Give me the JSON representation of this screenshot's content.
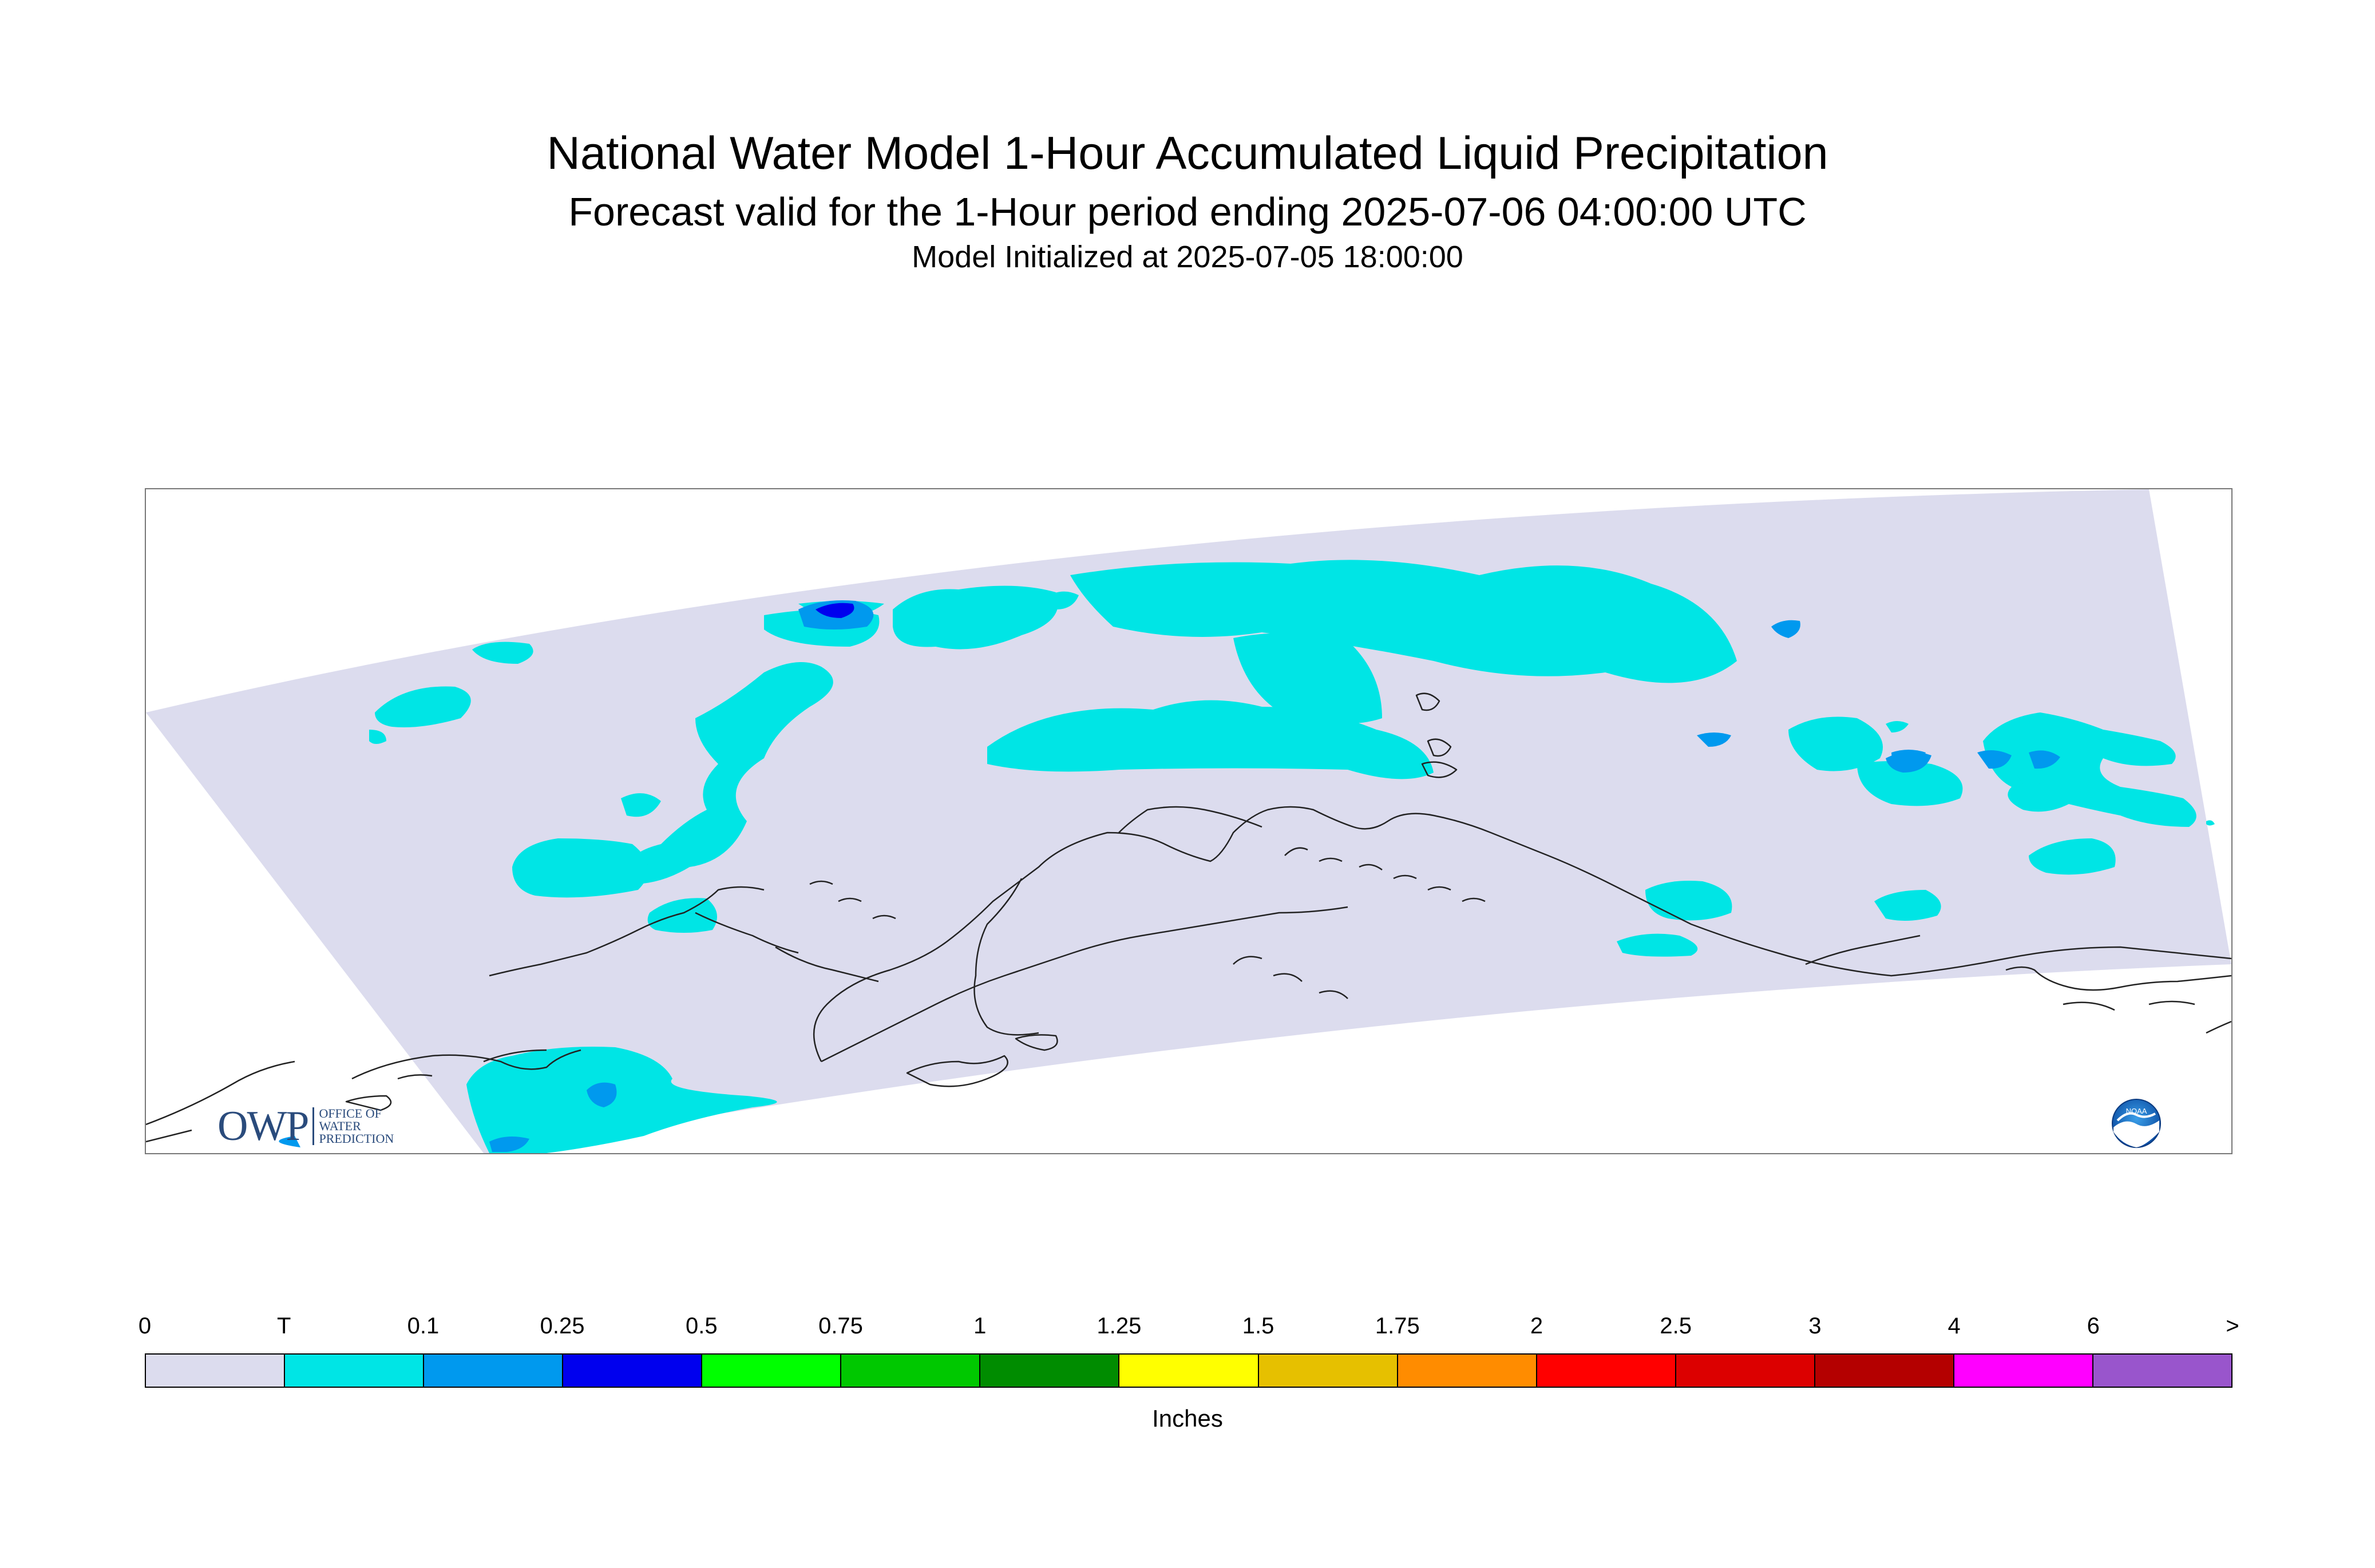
{
  "title": {
    "line1": "National Water Model 1-Hour Accumulated Liquid Precipitation",
    "line2": "Forecast valid for the 1-Hour period ending 2025-07-06 04:00:00 UTC",
    "line3": "Model Initialized at 2025-07-05 18:00:00"
  },
  "map": {
    "domain_color": "#dcdcee",
    "coastline_color": "#222222"
  },
  "owp_logo": {
    "mark": "OWP",
    "line1": "OFFICE OF",
    "line2": "WATER",
    "line3": "PREDICTION"
  },
  "noaa_logo": {
    "text": "NOAA",
    "icon": "noaa-emblem"
  },
  "legend": {
    "units": "Inches",
    "ticks": [
      "0",
      "T",
      "0.1",
      "0.25",
      "0.5",
      "0.75",
      "1",
      "1.25",
      "1.5",
      "1.75",
      "2",
      "2.5",
      "3",
      "4",
      "6",
      ">"
    ],
    "colors": [
      "#dcdcee",
      "#00e5e5",
      "#0099ee",
      "#0000ee",
      "#00ff00",
      "#00c800",
      "#008c00",
      "#ffff00",
      "#e6c000",
      "#ff8c00",
      "#ff0000",
      "#dc0000",
      "#b40000",
      "#ff00ff",
      "#9955cc"
    ]
  }
}
